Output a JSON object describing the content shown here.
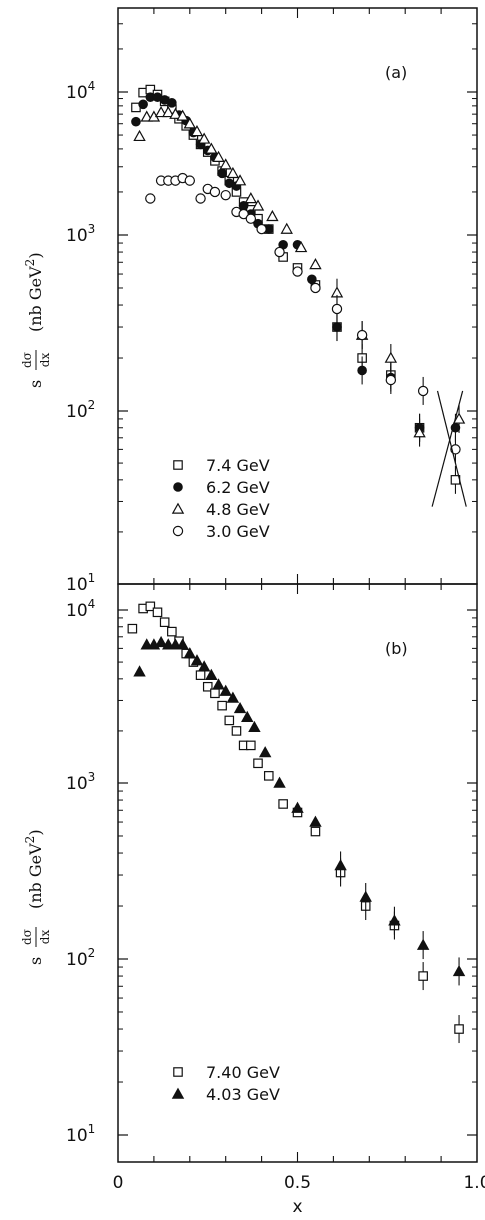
{
  "chart_data": [
    {
      "type": "scatter",
      "panel_label": "(a)",
      "x_range": [
        0,
        1.0
      ],
      "y_range": [
        10,
        12000
      ],
      "y_scale": "log",
      "ylabel_parts": {
        "s": "s",
        "num": "dσ",
        "den": "dx",
        "unit": "(nb GeV",
        "unit_sup": "2",
        "unit_close": ")"
      },
      "legend_position": "lower-left",
      "series": [
        {
          "name": "7.4 GeV",
          "marker": "open-square",
          "points": [
            [
              0.05,
              7800
            ],
            [
              0.07,
              9900
            ],
            [
              0.09,
              10400
            ],
            [
              0.11,
              9600
            ],
            [
              0.13,
              8600
            ],
            [
              0.15,
              7600
            ],
            [
              0.17,
              6500
            ],
            [
              0.19,
              5800
            ],
            [
              0.21,
              5000
            ],
            [
              0.23,
              4300
            ],
            [
              0.25,
              3800
            ],
            [
              0.27,
              3300
            ],
            [
              0.29,
              2800
            ],
            [
              0.31,
              2400
            ],
            [
              0.33,
              2000
            ],
            [
              0.35,
              1700
            ],
            [
              0.37,
              1500
            ],
            [
              0.39,
              1300
            ],
            [
              0.42,
              1100
            ],
            [
              0.46,
              750
            ],
            [
              0.5,
              650
            ],
            [
              0.55,
              520
            ],
            [
              0.61,
              300
            ],
            [
              0.68,
              200
            ],
            [
              0.76,
              160
            ],
            [
              0.84,
              80
            ],
            [
              0.94,
              40
            ]
          ]
        },
        {
          "name": "6.2 GeV",
          "marker": "filled-circle",
          "points": [
            [
              0.05,
              6200
            ],
            [
              0.07,
              8200
            ],
            [
              0.09,
              9200
            ],
            [
              0.11,
              9200
            ],
            [
              0.13,
              8800
            ],
            [
              0.15,
              8400
            ],
            [
              0.17,
              6900
            ],
            [
              0.19,
              6300
            ],
            [
              0.21,
              5200
            ],
            [
              0.23,
              4300
            ],
            [
              0.25,
              3900
            ],
            [
              0.27,
              3500
            ],
            [
              0.29,
              2700
            ],
            [
              0.31,
              2300
            ],
            [
              0.33,
              2200
            ],
            [
              0.35,
              1600
            ],
            [
              0.37,
              1400
            ],
            [
              0.39,
              1200
            ],
            [
              0.42,
              1100
            ],
            [
              0.46,
              880
            ],
            [
              0.5,
              880
            ],
            [
              0.54,
              560
            ],
            [
              0.61,
              300
            ],
            [
              0.68,
              170
            ],
            [
              0.76,
              155
            ],
            [
              0.84,
              80
            ],
            [
              0.94,
              80
            ]
          ]
        },
        {
          "name": "4.8 GeV",
          "marker": "open-triangle",
          "points": [
            [
              0.06,
              4900
            ],
            [
              0.08,
              6700
            ],
            [
              0.1,
              6700
            ],
            [
              0.12,
              7200
            ],
            [
              0.14,
              7200
            ],
            [
              0.16,
              7000
            ],
            [
              0.18,
              6800
            ],
            [
              0.2,
              6000
            ],
            [
              0.22,
              5300
            ],
            [
              0.24,
              4700
            ],
            [
              0.26,
              4000
            ],
            [
              0.28,
              3500
            ],
            [
              0.3,
              3100
            ],
            [
              0.32,
              2700
            ],
            [
              0.34,
              2400
            ],
            [
              0.37,
              1800
            ],
            [
              0.39,
              1600
            ],
            [
              0.43,
              1350
            ],
            [
              0.47,
              1100
            ],
            [
              0.51,
              850
            ],
            [
              0.55,
              680
            ],
            [
              0.61,
              470
            ],
            [
              0.68,
              270
            ],
            [
              0.76,
              200
            ],
            [
              0.84,
              75
            ],
            [
              0.95,
              90
            ]
          ]
        },
        {
          "name": "3.0 GeV",
          "marker": "open-circle",
          "points": [
            [
              0.09,
              1800
            ],
            [
              0.12,
              2400
            ],
            [
              0.14,
              2400
            ],
            [
              0.16,
              2400
            ],
            [
              0.18,
              2500
            ],
            [
              0.2,
              2400
            ],
            [
              0.23,
              1800
            ],
            [
              0.25,
              2100
            ],
            [
              0.27,
              2000
            ],
            [
              0.3,
              1900
            ],
            [
              0.33,
              1450
            ],
            [
              0.35,
              1400
            ],
            [
              0.37,
              1300
            ],
            [
              0.4,
              1100
            ],
            [
              0.45,
              800
            ],
            [
              0.5,
              620
            ],
            [
              0.55,
              500
            ],
            [
              0.61,
              380
            ],
            [
              0.68,
              270
            ],
            [
              0.76,
              150
            ],
            [
              0.85,
              130
            ],
            [
              0.94,
              60
            ]
          ]
        }
      ]
    },
    {
      "type": "scatter",
      "panel_label": "(b)",
      "x_range": [
        0,
        1.0
      ],
      "y_range": [
        10,
        12000
      ],
      "y_scale": "log",
      "xlabel": "x",
      "ylabel_parts": {
        "s": "s",
        "num": "dσ",
        "den": "dx",
        "unit": "(nb GeV",
        "unit_sup": "2",
        "unit_close": ")"
      },
      "legend_position": "lower-left",
      "series": [
        {
          "name": "7.40 GeV",
          "marker": "open-square",
          "points": [
            [
              0.04,
              7800
            ],
            [
              0.07,
              10200
            ],
            [
              0.09,
              10500
            ],
            [
              0.11,
              9700
            ],
            [
              0.13,
              8500
            ],
            [
              0.15,
              7500
            ],
            [
              0.17,
              6600
            ],
            [
              0.19,
              5600
            ],
            [
              0.21,
              5000
            ],
            [
              0.23,
              4200
            ],
            [
              0.25,
              3600
            ],
            [
              0.27,
              3300
            ],
            [
              0.29,
              2800
            ],
            [
              0.31,
              2300
            ],
            [
              0.33,
              2000
            ],
            [
              0.35,
              1650
            ],
            [
              0.37,
              1650
            ],
            [
              0.39,
              1300
            ],
            [
              0.42,
              1100
            ],
            [
              0.46,
              760
            ],
            [
              0.5,
              680
            ],
            [
              0.55,
              530
            ],
            [
              0.62,
              310
            ],
            [
              0.69,
              200
            ],
            [
              0.77,
              155
            ],
            [
              0.85,
              80
            ],
            [
              0.95,
              40
            ]
          ]
        },
        {
          "name": "4.03 GeV",
          "marker": "filled-triangle",
          "points": [
            [
              0.06,
              4400
            ],
            [
              0.08,
              6300
            ],
            [
              0.1,
              6300
            ],
            [
              0.12,
              6500
            ],
            [
              0.14,
              6300
            ],
            [
              0.16,
              6300
            ],
            [
              0.18,
              6300
            ],
            [
              0.2,
              5600
            ],
            [
              0.22,
              5100
            ],
            [
              0.24,
              4700
            ],
            [
              0.26,
              4200
            ],
            [
              0.28,
              3700
            ],
            [
              0.3,
              3400
            ],
            [
              0.32,
              3100
            ],
            [
              0.34,
              2700
            ],
            [
              0.36,
              2400
            ],
            [
              0.38,
              2100
            ],
            [
              0.41,
              1500
            ],
            [
              0.45,
              1000
            ],
            [
              0.5,
              720
            ],
            [
              0.55,
              600
            ],
            [
              0.62,
              340
            ],
            [
              0.69,
              225
            ],
            [
              0.77,
              165
            ],
            [
              0.85,
              120
            ],
            [
              0.95,
              85
            ]
          ]
        }
      ]
    }
  ],
  "x_ticks": [
    "0",
    "0.5",
    "1.0"
  ],
  "y_tick_base": "10",
  "y_tick_exps": [
    "1",
    "2",
    "3",
    "4"
  ]
}
